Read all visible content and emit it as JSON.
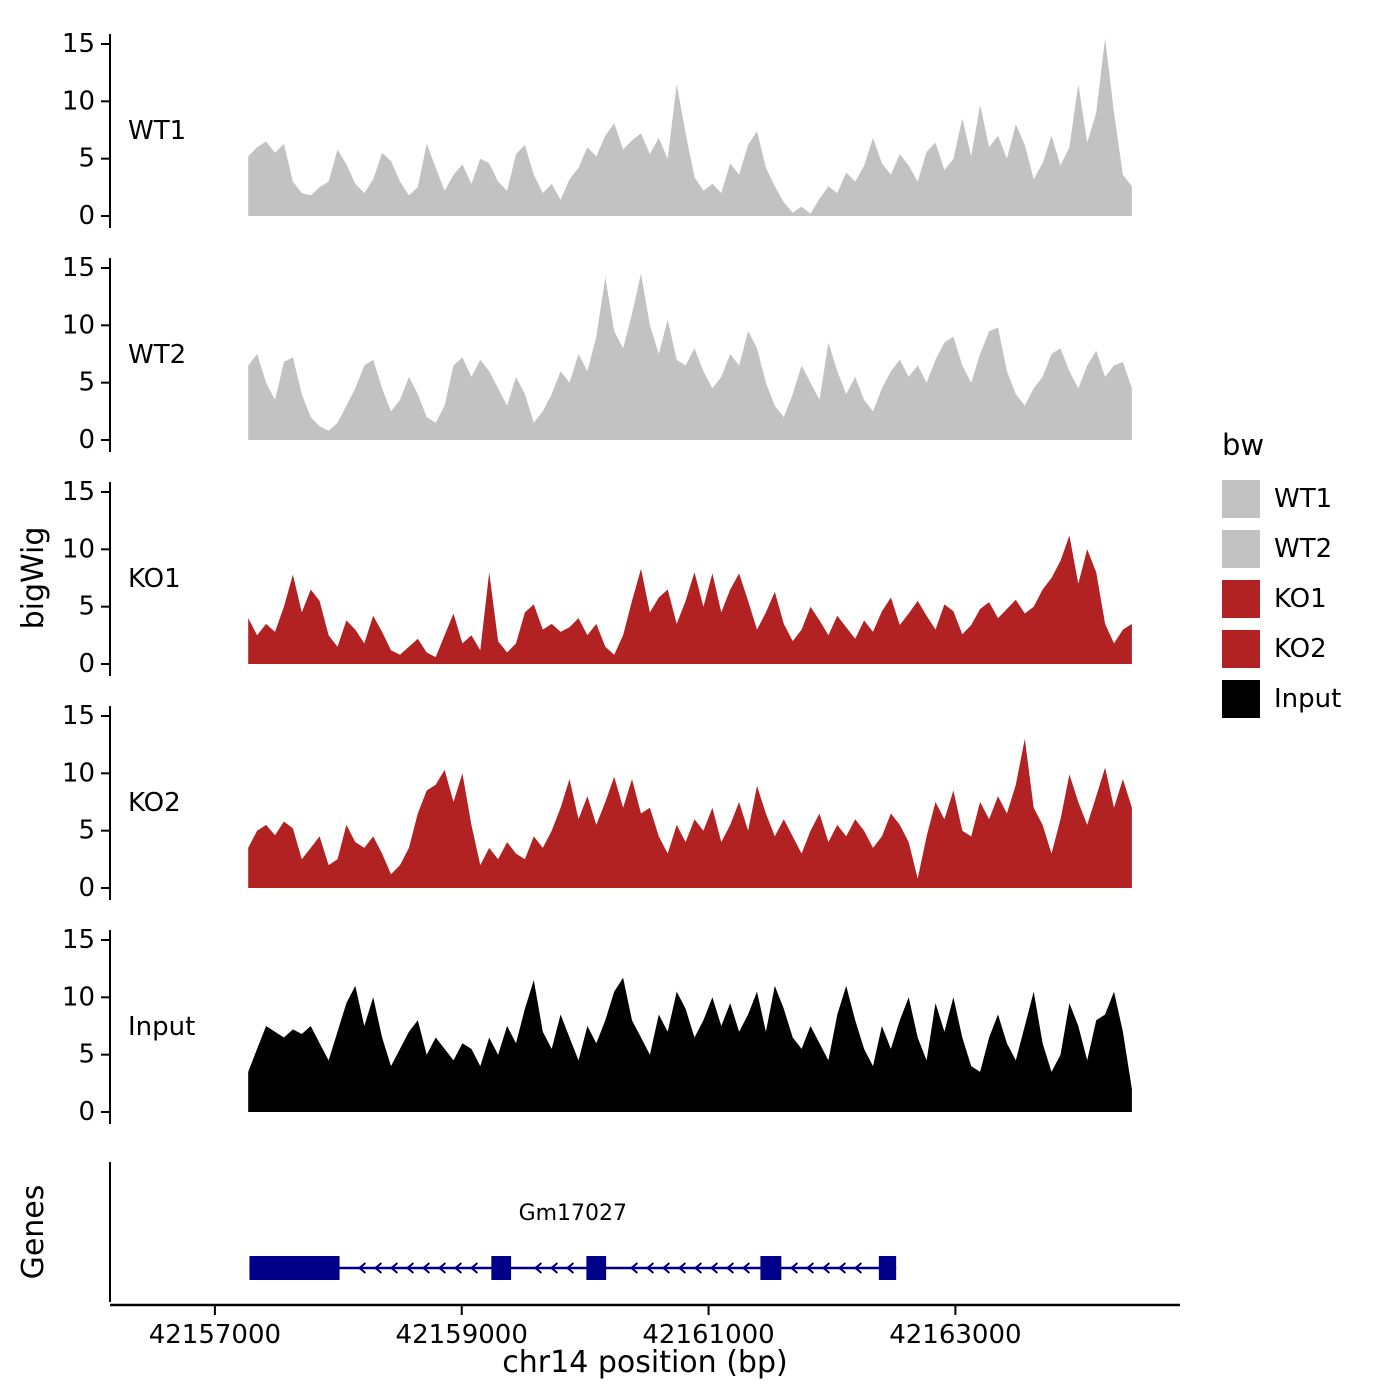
{
  "figure": {
    "y_axis_title": "bigWig",
    "genes_axis_title": "Genes",
    "x_axis_title": "chr14 position (bp)"
  },
  "legend": {
    "title": "bw",
    "entries": [
      {
        "label": "WT1",
        "color": "#c2c2c2"
      },
      {
        "label": "WT2",
        "color": "#c2c2c2"
      },
      {
        "label": "KO1",
        "color": "#b22222"
      },
      {
        "label": "KO2",
        "color": "#b22222"
      },
      {
        "label": "Input",
        "color": "#000000"
      }
    ]
  },
  "chart_data": {
    "type": "area",
    "title": "",
    "xlabel": "chr14 position (bp)",
    "ylabel": "bigWig",
    "x_domain_bp": [
      42156150,
      42164820
    ],
    "data_range_bp": [
      42157270,
      42164430
    ],
    "xticks": [
      42157000,
      42159000,
      42161000,
      42163000
    ],
    "yticks": [
      0,
      5,
      10,
      15
    ],
    "ylim": [
      0,
      15
    ],
    "tracks": [
      {
        "name": "WT1",
        "color": "#c2c2c2",
        "values": [
          5.2,
          6.0,
          6.5,
          5.5,
          6.3,
          3.0,
          2.0,
          1.8,
          2.5,
          3.0,
          5.8,
          4.5,
          2.8,
          2.0,
          3.2,
          5.5,
          4.8,
          3.0,
          1.8,
          2.5,
          6.3,
          4.2,
          2.2,
          3.6,
          4.5,
          2.8,
          5.0,
          4.6,
          3.0,
          2.2,
          5.4,
          6.2,
          3.6,
          2.0,
          2.8,
          1.4,
          3.2,
          4.2,
          6.0,
          5.2,
          7.0,
          8.1,
          5.8,
          6.6,
          7.2,
          5.4,
          6.8,
          5.0,
          11.5,
          7.2,
          3.4,
          2.2,
          2.8,
          2.0,
          4.6,
          3.6,
          6.2,
          7.4,
          4.2,
          2.6,
          1.2,
          0.3,
          0.8,
          0.2,
          1.5,
          2.6,
          2.0,
          3.8,
          3.0,
          4.4,
          6.8,
          4.6,
          3.6,
          5.4,
          4.4,
          3.0,
          5.6,
          6.4,
          4.0,
          5.0,
          8.5,
          5.2,
          9.7,
          6.0,
          7.0,
          5.0,
          8.0,
          6.2,
          3.2,
          4.6,
          7.0,
          4.4,
          6.0,
          11.5,
          6.4,
          9.0,
          15.5,
          9.0,
          3.6,
          2.6
        ]
      },
      {
        "name": "WT2",
        "color": "#c2c2c2",
        "values": [
          6.5,
          7.5,
          5.0,
          3.5,
          6.8,
          7.2,
          4.0,
          2.0,
          1.2,
          0.8,
          1.5,
          3.0,
          4.5,
          6.5,
          7.0,
          4.5,
          2.5,
          3.5,
          5.5,
          4.0,
          2.0,
          1.5,
          3.0,
          6.5,
          7.2,
          5.5,
          7.0,
          6.0,
          4.5,
          3.0,
          5.5,
          4.0,
          1.5,
          2.5,
          4.0,
          6.0,
          5.0,
          7.5,
          6.0,
          9.0,
          14.2,
          9.5,
          8.0,
          11.0,
          14.5,
          10.0,
          7.5,
          10.5,
          7.0,
          6.5,
          8.0,
          6.0,
          4.5,
          5.5,
          7.5,
          6.5,
          9.5,
          8.0,
          5.0,
          3.0,
          2.0,
          4.0,
          6.5,
          5.0,
          3.5,
          8.5,
          6.0,
          4.0,
          5.5,
          3.5,
          2.5,
          4.5,
          6.0,
          7.0,
          5.5,
          6.5,
          5.0,
          7.0,
          8.5,
          9.0,
          6.5,
          5.0,
          7.5,
          9.5,
          9.8,
          6.0,
          4.0,
          3.0,
          4.5,
          5.5,
          7.5,
          8.0,
          6.0,
          4.5,
          6.5,
          7.8,
          5.5,
          6.5,
          6.8,
          4.5
        ]
      },
      {
        "name": "KO1",
        "color": "#b22222",
        "values": [
          4.0,
          2.5,
          3.5,
          2.8,
          5.0,
          7.8,
          4.5,
          6.5,
          5.5,
          2.5,
          1.5,
          3.8,
          3.0,
          1.8,
          4.2,
          2.8,
          1.2,
          0.8,
          1.5,
          2.2,
          1.0,
          0.6,
          2.5,
          4.4,
          1.8,
          2.5,
          1.2,
          8.0,
          2.0,
          1.0,
          1.8,
          4.5,
          5.2,
          3.0,
          3.5,
          2.8,
          3.2,
          4.0,
          2.5,
          3.5,
          1.5,
          0.8,
          2.5,
          5.5,
          8.3,
          4.5,
          5.8,
          6.5,
          3.5,
          5.5,
          8.0,
          5.0,
          7.9,
          4.5,
          6.5,
          7.9,
          5.5,
          3.0,
          4.5,
          6.3,
          3.5,
          2.0,
          3.0,
          5.0,
          3.8,
          2.5,
          4.2,
          3.2,
          2.2,
          3.8,
          2.8,
          4.6,
          5.8,
          3.4,
          4.4,
          5.5,
          4.2,
          3.0,
          5.2,
          4.6,
          2.6,
          3.4,
          4.8,
          5.4,
          4.0,
          4.8,
          5.6,
          4.4,
          5.0,
          6.5,
          7.5,
          9.0,
          11.2,
          7.0,
          10.0,
          8.0,
          3.5,
          1.8,
          3.0,
          3.5
        ]
      },
      {
        "name": "KO2",
        "color": "#b22222",
        "values": [
          3.5,
          5.0,
          5.5,
          4.6,
          5.8,
          5.2,
          2.5,
          3.5,
          4.5,
          2.0,
          2.5,
          5.5,
          4.0,
          3.5,
          4.5,
          3.0,
          1.2,
          2.0,
          3.5,
          6.5,
          8.5,
          9.0,
          10.3,
          7.5,
          10.0,
          5.5,
          2.0,
          3.5,
          2.5,
          4.0,
          3.0,
          2.5,
          4.5,
          3.5,
          5.0,
          7.0,
          9.5,
          6.0,
          8.0,
          5.5,
          7.5,
          9.7,
          7.0,
          9.5,
          6.5,
          7.0,
          4.5,
          3.0,
          5.5,
          4.0,
          6.0,
          5.0,
          7.0,
          4.0,
          5.5,
          7.5,
          5.0,
          8.9,
          6.5,
          4.5,
          6.0,
          4.5,
          3.0,
          5.0,
          6.5,
          4.0,
          5.5,
          4.5,
          6.0,
          5.0,
          3.5,
          4.5,
          6.5,
          5.5,
          4.0,
          0.8,
          4.5,
          7.5,
          6.0,
          8.5,
          5.0,
          4.5,
          7.5,
          6.0,
          8.0,
          6.5,
          9.0,
          13.0,
          7.0,
          5.5,
          3.0,
          6.0,
          9.9,
          7.5,
          5.5,
          8.0,
          10.5,
          7.0,
          9.5,
          7.0
        ]
      },
      {
        "name": "Input",
        "color": "#000000",
        "values": [
          3.5,
          5.5,
          7.5,
          7.0,
          6.5,
          7.2,
          6.8,
          7.5,
          6.0,
          4.5,
          7.0,
          9.5,
          11.0,
          7.5,
          10.0,
          6.5,
          4.0,
          5.5,
          7.0,
          8.0,
          5.0,
          6.5,
          5.5,
          4.5,
          6.0,
          5.5,
          4.0,
          6.5,
          5.0,
          7.5,
          6.0,
          9.0,
          11.5,
          7.0,
          5.5,
          8.5,
          6.5,
          4.5,
          7.5,
          6.0,
          8.0,
          10.5,
          11.7,
          8.0,
          6.5,
          5.0,
          8.5,
          7.0,
          10.5,
          9.0,
          6.5,
          8.0,
          10.0,
          7.5,
          9.5,
          7.0,
          8.5,
          10.5,
          7.0,
          11.0,
          9.0,
          6.5,
          5.5,
          7.5,
          6.0,
          4.5,
          8.5,
          11.0,
          8.0,
          5.5,
          4.0,
          7.5,
          5.5,
          8.0,
          10.0,
          6.5,
          4.5,
          9.5,
          7.0,
          10.0,
          6.5,
          4.0,
          3.5,
          6.5,
          8.5,
          6.0,
          4.5,
          7.5,
          10.5,
          6.0,
          3.5,
          5.0,
          9.5,
          7.5,
          4.5,
          8.0,
          8.5,
          10.5,
          7.0,
          2.0
        ]
      }
    ],
    "gene_track": {
      "panel_label": "Genes",
      "gene": {
        "name": "Gm17027",
        "strand": "-",
        "start_bp": 42157280,
        "end_bp": 42162520,
        "exons_bp": [
          [
            42157280,
            42158010
          ],
          [
            42159240,
            42159400
          ],
          [
            42160010,
            42160170
          ],
          [
            42161420,
            42161590
          ],
          [
            42162380,
            42162520
          ]
        ],
        "color": "#00008b"
      }
    }
  }
}
